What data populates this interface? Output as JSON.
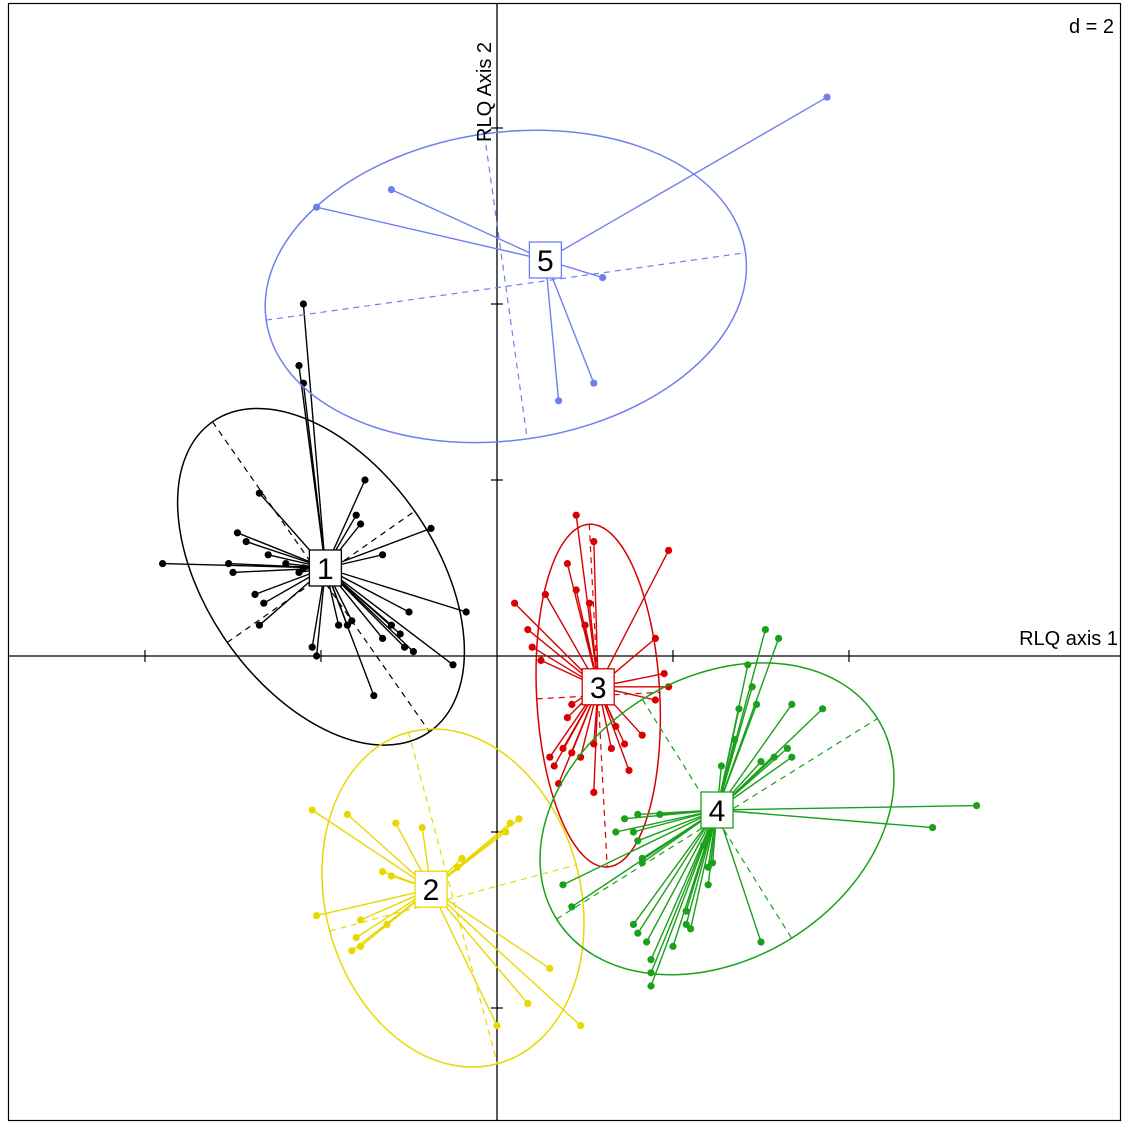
{
  "chart_data": {
    "type": "scatter",
    "subtype": "rlq-group-star-plot",
    "scale_label": "d = 2",
    "xlabel": "RLQ axis 1",
    "ylabel": "RLQ Axis 2",
    "xlim": [
      -5.6,
      7.2
    ],
    "ylim": [
      -5.4,
      7.5
    ],
    "x_ticks": [
      -4,
      -2,
      0,
      2,
      4
    ],
    "y_ticks": [
      -4,
      -2,
      0,
      2,
      4,
      6
    ],
    "grid": false,
    "legend": "none",
    "groups": [
      {
        "label": "1",
        "color": "#000000",
        "center": [
          -1.95,
          1.0
        ],
        "ellipse": {
          "cx": -2.0,
          "cy": 0.9,
          "rx": 1.3,
          "ry": 2.15,
          "angle": -35
        },
        "points": [
          [
            -2.2,
            4.0
          ],
          [
            -2.25,
            3.3
          ],
          [
            -2.2,
            3.1
          ],
          [
            -1.5,
            2.0
          ],
          [
            -1.6,
            1.6
          ],
          [
            -0.75,
            1.45
          ],
          [
            -1.3,
            1.15
          ],
          [
            -1.55,
            1.5
          ],
          [
            -2.7,
            1.85
          ],
          [
            -2.95,
            1.4
          ],
          [
            -2.85,
            1.3
          ],
          [
            -2.6,
            1.15
          ],
          [
            -2.4,
            1.05
          ],
          [
            -2.2,
            1.0
          ],
          [
            -2.25,
            0.95
          ],
          [
            -3.05,
            1.05
          ],
          [
            -3.0,
            0.95
          ],
          [
            -3.8,
            1.05
          ],
          [
            -2.75,
            0.7
          ],
          [
            -2.65,
            0.6
          ],
          [
            -2.7,
            0.35
          ],
          [
            -1.65,
            0.4
          ],
          [
            -1.8,
            0.35
          ],
          [
            -1.7,
            0.35
          ],
          [
            -1.2,
            0.35
          ],
          [
            -1.3,
            0.2
          ],
          [
            -1.0,
            0.5
          ],
          [
            -1.1,
            0.25
          ],
          [
            -0.95,
            0.05
          ],
          [
            -1.05,
            0.1
          ],
          [
            -0.35,
            0.5
          ],
          [
            -0.5,
            -0.1
          ],
          [
            -2.1,
            0.1
          ],
          [
            -2.05,
            0.0
          ],
          [
            -1.4,
            -0.45
          ]
        ]
      },
      {
        "label": "2",
        "color": "#e8d800",
        "center": [
          -0.75,
          -2.65
        ],
        "ellipse": {
          "cx": -0.5,
          "cy": -2.75,
          "rx": 1.45,
          "ry": 1.95,
          "angle": -15
        },
        "points": [
          [
            -2.1,
            -1.75
          ],
          [
            -1.7,
            -1.8
          ],
          [
            -1.15,
            -1.9
          ],
          [
            -0.85,
            -1.95
          ],
          [
            0.25,
            -1.85
          ],
          [
            0.15,
            -1.9
          ],
          [
            0.1,
            -2.0
          ],
          [
            -0.4,
            -2.3
          ],
          [
            -0.45,
            -2.4
          ],
          [
            -1.3,
            -2.45
          ],
          [
            -1.2,
            -2.5
          ],
          [
            -2.05,
            -2.95
          ],
          [
            -1.55,
            -3.0
          ],
          [
            -1.25,
            -3.05
          ],
          [
            -1.6,
            -3.2
          ],
          [
            -1.55,
            -3.3
          ],
          [
            -1.65,
            -3.35
          ],
          [
            0.6,
            -3.55
          ],
          [
            0.35,
            -3.95
          ],
          [
            0.0,
            -4.2
          ],
          [
            0.95,
            -4.2
          ]
        ]
      },
      {
        "label": "3",
        "color": "#d80000",
        "center": [
          1.15,
          -0.35
        ],
        "ellipse": {
          "cx": 1.15,
          "cy": -0.45,
          "rx": 0.7,
          "ry": 1.95,
          "angle": -3
        },
        "points": [
          [
            0.9,
            1.6
          ],
          [
            1.1,
            1.3
          ],
          [
            0.8,
            1.05
          ],
          [
            1.95,
            1.2
          ],
          [
            0.9,
            0.75
          ],
          [
            0.55,
            0.7
          ],
          [
            0.2,
            0.6
          ],
          [
            1.05,
            0.6
          ],
          [
            0.35,
            0.3
          ],
          [
            1.0,
            0.35
          ],
          [
            1.8,
            0.2
          ],
          [
            1.9,
            -0.2
          ],
          [
            0.4,
            0.1
          ],
          [
            0.5,
            -0.05
          ],
          [
            1.95,
            -0.35
          ],
          [
            1.8,
            -0.5
          ],
          [
            0.85,
            -0.55
          ],
          [
            0.8,
            -0.7
          ],
          [
            1.35,
            -0.8
          ],
          [
            1.65,
            -0.9
          ],
          [
            0.75,
            -1.05
          ],
          [
            1.1,
            -1.0
          ],
          [
            1.5,
            -1.3
          ],
          [
            1.45,
            -1.0
          ],
          [
            0.65,
            -1.25
          ],
          [
            0.85,
            -1.1
          ],
          [
            1.3,
            -1.05
          ],
          [
            1.1,
            -1.55
          ],
          [
            0.7,
            -1.45
          ],
          [
            0.95,
            -1.15
          ],
          [
            0.6,
            -1.15
          ]
        ]
      },
      {
        "label": "4",
        "color": "#1aa01a",
        "center": [
          2.5,
          -1.75
        ],
        "ellipse": {
          "cx": 2.5,
          "cy": -1.85,
          "rx": 2.15,
          "ry": 1.6,
          "angle": -32
        },
        "points": [
          [
            3.05,
            0.3
          ],
          [
            3.2,
            0.2
          ],
          [
            2.85,
            -0.1
          ],
          [
            2.9,
            -0.35
          ],
          [
            2.95,
            -0.55
          ],
          [
            3.35,
            -0.55
          ],
          [
            3.7,
            -0.6
          ],
          [
            2.75,
            -0.6
          ],
          [
            2.7,
            -0.95
          ],
          [
            3.3,
            -1.05
          ],
          [
            3.15,
            -1.15
          ],
          [
            3.35,
            -1.15
          ],
          [
            2.55,
            -1.25
          ],
          [
            3.0,
            -1.2
          ],
          [
            5.45,
            -1.7
          ],
          [
            4.95,
            -1.95
          ],
          [
            1.45,
            -1.85
          ],
          [
            1.6,
            -1.8
          ],
          [
            1.85,
            -1.8
          ],
          [
            1.35,
            -2.0
          ],
          [
            1.55,
            -2.0
          ],
          [
            1.6,
            -2.1
          ],
          [
            2.35,
            -2.15
          ],
          [
            1.65,
            -2.3
          ],
          [
            1.65,
            -2.35
          ],
          [
            2.45,
            -2.35
          ],
          [
            2.4,
            -2.4
          ],
          [
            2.4,
            -2.6
          ],
          [
            0.75,
            -2.6
          ],
          [
            2.15,
            -2.9
          ],
          [
            2.15,
            -3.05
          ],
          [
            0.85,
            -2.85
          ],
          [
            1.55,
            -3.05
          ],
          [
            1.6,
            -3.15
          ],
          [
            2.2,
            -3.1
          ],
          [
            1.7,
            -3.25
          ],
          [
            2.0,
            -3.3
          ],
          [
            3.0,
            -3.25
          ],
          [
            1.75,
            -3.45
          ],
          [
            1.75,
            -3.6
          ],
          [
            1.75,
            -3.75
          ]
        ]
      },
      {
        "label": "5",
        "color": "#6f7ff0",
        "center": [
          0.55,
          4.5
        ],
        "ellipse": {
          "cx": 0.1,
          "cy": 4.2,
          "rx": 2.75,
          "ry": 1.75,
          "angle": -8
        },
        "points": [
          [
            3.75,
            6.35
          ],
          [
            -1.2,
            5.3
          ],
          [
            -2.05,
            5.1
          ],
          [
            1.2,
            4.3
          ],
          [
            1.1,
            3.1
          ],
          [
            0.7,
            2.9
          ]
        ]
      }
    ]
  }
}
